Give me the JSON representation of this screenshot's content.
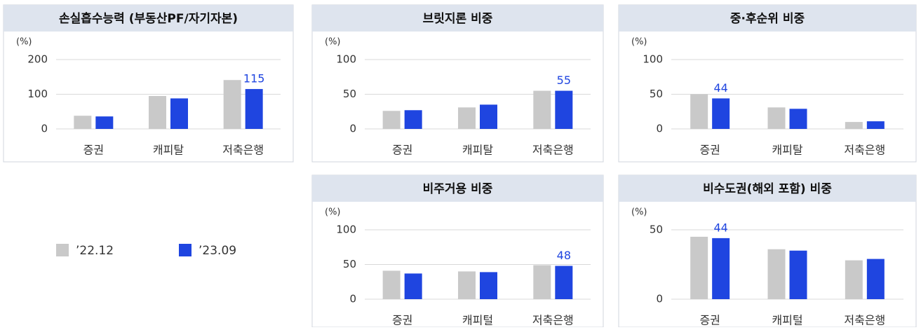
{
  "chart_data": [
    {
      "type": "bar",
      "title": "손실흡수능력 (부동산PF/자기자본)",
      "unit": "(%)",
      "categories": [
        "증권",
        "캐피탈",
        "저축은행"
      ],
      "series": [
        {
          "name": "’22.12",
          "color": "#c9c9c9",
          "values": [
            38,
            95,
            141
          ]
        },
        {
          "name": "’23.09",
          "color": "#1f45e0",
          "values": [
            36,
            88,
            115
          ],
          "value_labels": [
            null,
            null,
            "115"
          ]
        }
      ],
      "ylim": [
        0,
        200
      ],
      "yticks": [
        0,
        100,
        200
      ],
      "grid": true
    },
    {
      "type": "bar",
      "title": "브릿지론 비중",
      "unit": "(%)",
      "categories": [
        "증권",
        "캐피탈",
        "저축은행"
      ],
      "series": [
        {
          "name": "’22.12",
          "color": "#c9c9c9",
          "values": [
            26,
            31,
            55
          ]
        },
        {
          "name": "’23.09",
          "color": "#1f45e0",
          "values": [
            27,
            35,
            55
          ],
          "value_labels": [
            null,
            null,
            "55"
          ]
        }
      ],
      "ylim": [
        0,
        100
      ],
      "yticks": [
        0,
        50,
        100
      ],
      "grid": true
    },
    {
      "type": "bar",
      "title": "중·후순위 비중",
      "unit": "(%)",
      "categories": [
        "증권",
        "캐피탈",
        "저축은행"
      ],
      "series": [
        {
          "name": "’22.12",
          "color": "#c9c9c9",
          "values": [
            50,
            31,
            10
          ]
        },
        {
          "name": "’23.09",
          "color": "#1f45e0",
          "values": [
            44,
            29,
            11
          ],
          "value_labels": [
            "44",
            null,
            null
          ]
        }
      ],
      "ylim": [
        0,
        100
      ],
      "yticks": [
        0,
        50,
        100
      ],
      "grid": true
    },
    {
      "type": "bar",
      "title": "비주거용 비중",
      "unit": "(%)",
      "categories": [
        "증권",
        "캐피털",
        "저축은행"
      ],
      "series": [
        {
          "name": "’22.12",
          "color": "#c9c9c9",
          "values": [
            41,
            40,
            49
          ]
        },
        {
          "name": "’23.09",
          "color": "#1f45e0",
          "values": [
            37,
            39,
            48
          ],
          "value_labels": [
            null,
            null,
            "48"
          ]
        }
      ],
      "ylim": [
        0,
        100
      ],
      "yticks": [
        0,
        50,
        100
      ],
      "grid": true
    },
    {
      "type": "bar",
      "title": "비수도권(해외 포함) 비중",
      "unit": "(%)",
      "categories": [
        "증권",
        "캐피털",
        "저축은행"
      ],
      "series": [
        {
          "name": "’22.12",
          "color": "#c9c9c9",
          "values": [
            45,
            36,
            28
          ]
        },
        {
          "name": "’23.09",
          "color": "#1f45e0",
          "values": [
            44,
            35,
            29
          ],
          "value_labels": [
            "44",
            null,
            null
          ]
        }
      ],
      "ylim": [
        0,
        50
      ],
      "yticks": [
        0,
        50
      ],
      "grid": true
    }
  ]
}
